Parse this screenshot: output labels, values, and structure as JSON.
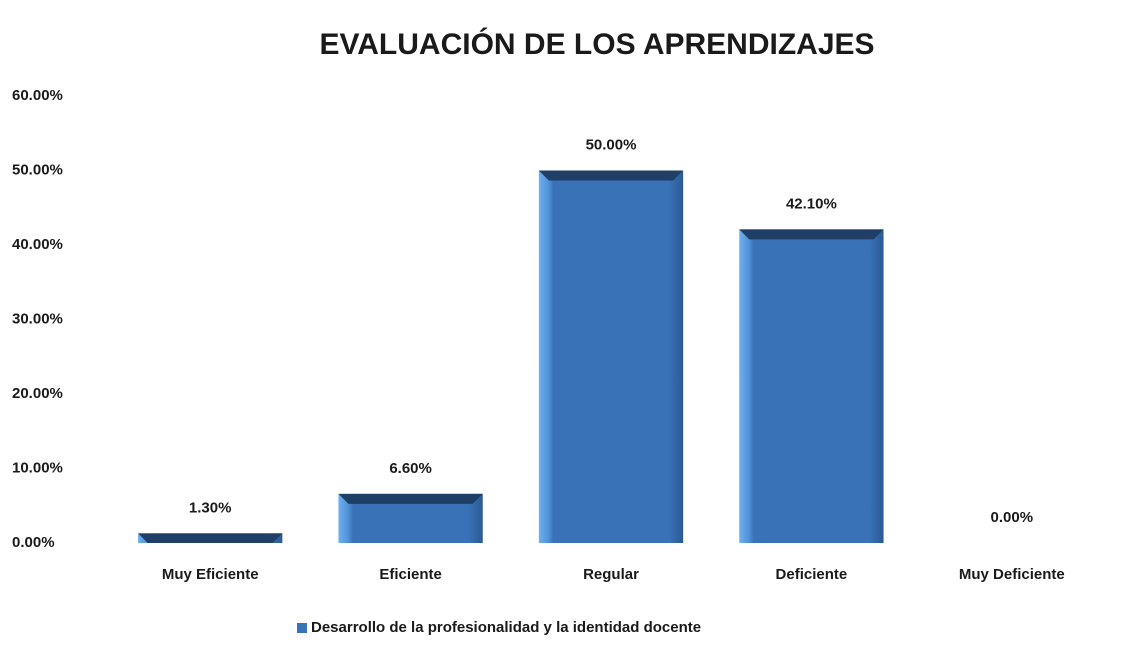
{
  "chart_data": {
    "type": "bar",
    "title": "EVALUACIÓN DE LOS APRENDIZAJES",
    "categories": [
      "Muy Eficiente",
      "Eficiente",
      "Regular",
      "Deficiente",
      "Muy Deficiente"
    ],
    "series": [
      {
        "name": "Desarrollo de la profesionalidad y la identidad docente",
        "color": "#3a72b8",
        "values": [
          1.3,
          6.6,
          50,
          42.1,
          0
        ],
        "value_labels": [
          "1.30%",
          "6.60%",
          "50.00%",
          "42.10%",
          "0.00%"
        ]
      }
    ],
    "ylim": [
      0,
      60
    ],
    "yticks": [
      {
        "value": 0,
        "label": "0.00%"
      },
      {
        "value": 10,
        "label": "10.00%"
      },
      {
        "value": 20,
        "label": "20.00%"
      },
      {
        "value": 30,
        "label": "30.00%"
      },
      {
        "value": 40,
        "label": "40.00%"
      },
      {
        "value": 50,
        "label": "50.00%"
      },
      {
        "value": 60,
        "label": "60.00%"
      }
    ],
    "grid": false,
    "legend": "bottom"
  }
}
